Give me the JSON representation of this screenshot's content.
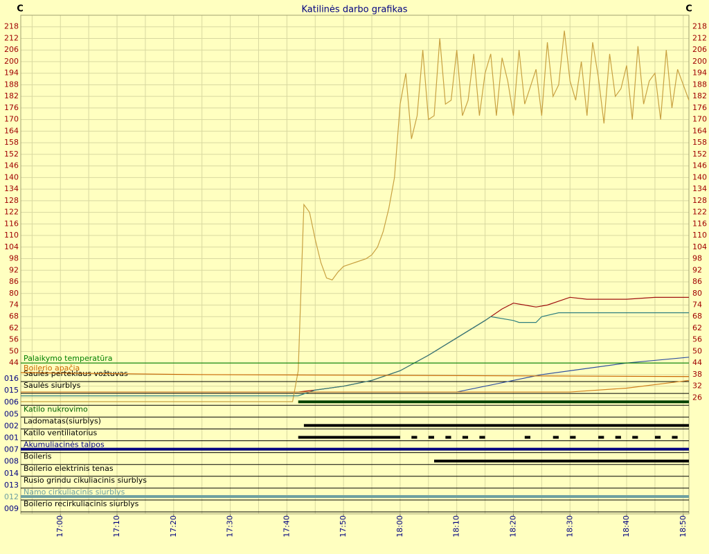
{
  "chart_data": {
    "type": "line",
    "title": "Katilinės darbo grafikas",
    "y_unit_left": "C",
    "y_unit_right": "C",
    "xlim": [
      "16:53",
      "18:51"
    ],
    "xticks": [
      "17:00",
      "17:10",
      "17:20",
      "17:30",
      "17:40",
      "17:50",
      "18:00",
      "18:10",
      "18:20",
      "18:30",
      "18:40",
      "18:50"
    ],
    "xgrid": [
      "16:55",
      "17:00",
      "17:05",
      "17:10",
      "17:15",
      "17:20",
      "17:25",
      "17:30",
      "17:35",
      "17:40",
      "17:45",
      "17:50",
      "17:55",
      "18:00",
      "18:05",
      "18:10",
      "18:15",
      "18:20",
      "18:25",
      "18:30",
      "18:35",
      "18:40",
      "18:45",
      "18:50"
    ],
    "ylim": [
      24,
      224
    ],
    "yticks": [
      26,
      32,
      38,
      44,
      50,
      56,
      62,
      68,
      74,
      80,
      86,
      92,
      98,
      104,
      110,
      116,
      122,
      128,
      134,
      140,
      146,
      152,
      158,
      164,
      170,
      176,
      182,
      188,
      194,
      200,
      206,
      212,
      218
    ],
    "grid": true,
    "series": [
      {
        "color": "#c8a040",
        "x": [
          "16:53",
          "17:41",
          "17:42",
          "17:43",
          "17:44",
          "17:45",
          "17:46",
          "17:47",
          "17:48",
          "17:49",
          "17:50",
          "17:52",
          "17:54",
          "17:55",
          "17:56",
          "17:57",
          "17:58",
          "17:59",
          "18:00",
          "18:01",
          "18:02",
          "18:03",
          "18:04",
          "18:05",
          "18:06",
          "18:07",
          "18:08",
          "18:09",
          "18:10",
          "18:11",
          "18:12",
          "18:13",
          "18:14",
          "18:15",
          "18:16",
          "18:17",
          "18:18",
          "18:19",
          "18:20",
          "18:21",
          "18:22",
          "18:24",
          "18:25",
          "18:26",
          "18:27",
          "18:28",
          "18:29",
          "18:30",
          "18:31",
          "18:32",
          "18:33",
          "18:34",
          "18:35",
          "18:36",
          "18:37",
          "18:38",
          "18:39",
          "18:40",
          "18:41",
          "18:42",
          "18:43",
          "18:44",
          "18:45",
          "18:46",
          "18:47",
          "18:48",
          "18:49",
          "18:50",
          "18:51"
        ],
        "values": [
          24,
          24,
          40,
          126,
          122,
          108,
          96,
          88,
          87,
          91,
          94,
          96,
          98,
          100,
          104,
          112,
          124,
          140,
          178,
          194,
          160,
          172,
          206,
          170,
          172,
          212,
          178,
          180,
          206,
          172,
          180,
          204,
          172,
          194,
          204,
          172,
          202,
          190,
          172,
          206,
          178,
          196,
          172,
          210,
          182,
          188,
          216,
          190,
          180,
          200,
          172,
          210,
          192,
          168,
          204,
          182,
          186,
          198,
          170,
          208,
          178,
          190,
          194,
          170,
          206,
          176,
          196,
          188,
          180
        ]
      },
      {
        "color": "#a01010",
        "x": [
          "16:53",
          "17:42",
          "17:45",
          "17:50",
          "17:55",
          "18:00",
          "18:05",
          "18:10",
          "18:15",
          "18:18",
          "18:20",
          "18:22",
          "18:24",
          "18:26",
          "18:30",
          "18:33",
          "18:40",
          "18:45",
          "18:51"
        ],
        "values": [
          29,
          29,
          30,
          32,
          35,
          40,
          48,
          57,
          66,
          72,
          75,
          74,
          73,
          74,
          78,
          77,
          77,
          78,
          78
        ]
      },
      {
        "color": "#2f7f7f",
        "x": [
          "16:53",
          "17:42",
          "17:45",
          "17:50",
          "17:55",
          "18:00",
          "18:05",
          "18:10",
          "18:15",
          "18:16",
          "18:20",
          "18:21",
          "18:24",
          "18:25",
          "18:28",
          "18:40",
          "18:51"
        ],
        "values": [
          27,
          27,
          30,
          32,
          35,
          40,
          48,
          57,
          66,
          68,
          66,
          65,
          65,
          68,
          70,
          70,
          70
        ]
      },
      {
        "color": "#3050a0",
        "x": [
          "16:53",
          "18:06",
          "18:10",
          "18:15",
          "18:20",
          "18:25",
          "18:30",
          "18:40",
          "18:51"
        ],
        "values": [
          29,
          29,
          29,
          32,
          35,
          38,
          40,
          44,
          47
        ]
      },
      {
        "name": "Palaikymo temperatūra",
        "color": "#008000",
        "x": [
          "16:53",
          "18:51"
        ],
        "values": [
          44,
          44
        ]
      },
      {
        "name": "Boilerio apačia",
        "color": "#c86400",
        "x": [
          "16:53",
          "17:25",
          "18:51"
        ],
        "values": [
          39,
          38,
          37
        ]
      },
      {
        "color": "#d08020",
        "x": [
          "16:53",
          "18:30",
          "18:40",
          "18:51"
        ],
        "values": [
          29,
          29,
          31,
          35
        ]
      }
    ],
    "digital": [
      {
        "code": "016",
        "label": "Saulės perteklaus vožtuvas",
        "color": "#000000",
        "segments": []
      },
      {
        "code": "015",
        "label": "Saulės siurblys",
        "color": "#000000",
        "segments": []
      },
      {
        "code": "006",
        "label": null,
        "color": "#004000",
        "segments": [
          [
            "17:42",
            "18:51"
          ]
        ]
      },
      {
        "code": "005",
        "label": "Katilo nukrovimo",
        "color": "#006000",
        "segments": []
      },
      {
        "code": "002",
        "label": "Ladomatas(siurblys)",
        "color": "#000000",
        "segments": [
          [
            "17:43",
            "18:51"
          ]
        ]
      },
      {
        "code": "001",
        "label": "Katilo ventiliatorius",
        "color": "#000000",
        "segments": [
          [
            "17:42",
            "18:00"
          ],
          [
            "18:02",
            "18:03"
          ],
          [
            "18:05",
            "18:06"
          ],
          [
            "18:08",
            "18:09"
          ],
          [
            "18:11",
            "18:12"
          ],
          [
            "18:14",
            "18:15"
          ],
          [
            "18:22",
            "18:23"
          ],
          [
            "18:27",
            "18:28"
          ],
          [
            "18:30",
            "18:31"
          ],
          [
            "18:35",
            "18:36"
          ],
          [
            "18:38",
            "18:39"
          ],
          [
            "18:41",
            "18:42"
          ],
          [
            "18:45",
            "18:46"
          ],
          [
            "18:48",
            "18:49"
          ]
        ]
      },
      {
        "code": "007",
        "label": "Akumuliacinės talpos",
        "color": "#000080",
        "segments": [
          [
            "16:53",
            "18:51"
          ]
        ]
      },
      {
        "code": "008",
        "label": "Boileris",
        "color": "#000000",
        "segments": [
          [
            "18:06",
            "18:51"
          ]
        ]
      },
      {
        "code": "014",
        "label": "Boilerio elektrinis tenas",
        "color": "#000000",
        "segments": []
      },
      {
        "code": "013",
        "label": "Rusio grindu cikuliacinis siurblys",
        "color": "#000000",
        "segments": []
      },
      {
        "code": "012",
        "label": "Namo cirkuliacinis siurblys",
        "color": "#6fa0a0",
        "segments": [
          [
            "16:53",
            "18:51"
          ]
        ]
      },
      {
        "code": "009",
        "label": "Boilerio recirkuliacinis siurblys",
        "color": "#000000",
        "segments": []
      }
    ]
  }
}
